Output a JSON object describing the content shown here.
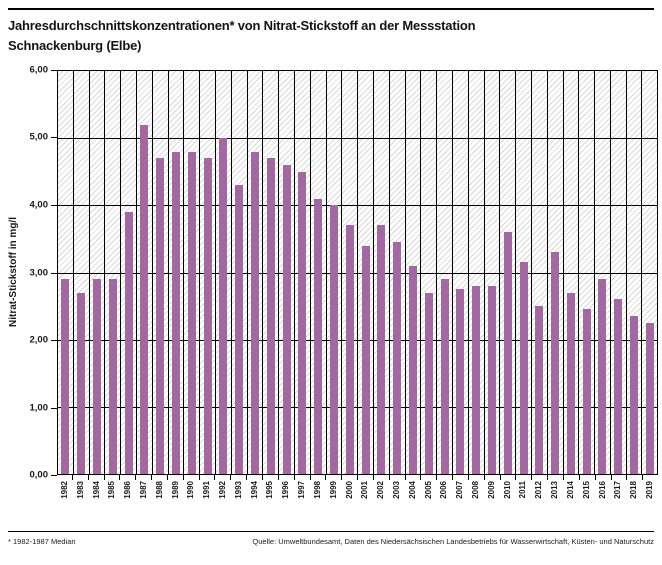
{
  "header": {
    "title_line1": "Jahresdurchschnittskonzentrationen* von Nitrat-Stickstoff an der Messstation",
    "title_line2": "Schnackenburg (Elbe)"
  },
  "footer": {
    "footnote": "* 1982-1987 Median",
    "source": "Quelle: Umweltbundesamt, Daten des Niedersächsischen Landesbetriebs für Wasserwirtschaft, Küsten- und Naturschutz"
  },
  "colors": {
    "bar": "#a268a0",
    "gridline": "#000000",
    "hatch": "#dadada",
    "text": "#1a1a1a"
  },
  "chart_data": {
    "type": "bar",
    "title": "Jahresdurchschnittskonzentrationen* von Nitrat-Stickstoff an der Messstation Schnackenburg (Elbe)",
    "xlabel": "",
    "ylabel": "Nitrat-Stickstoff in mg/l",
    "ylim": [
      0,
      6
    ],
    "ytick_step": 1,
    "ytick_labels_top_to_bottom": [
      "6,00",
      "5,00",
      "4,00",
      "3,00",
      "2,00",
      "1,00",
      "0,00"
    ],
    "grid": true,
    "legend": "none",
    "background_pattern": "diagonal-hatch",
    "categories": [
      "1982",
      "1983",
      "1984",
      "1985",
      "1986",
      "1987",
      "1988",
      "1989",
      "1990",
      "1991",
      "1992",
      "1993",
      "1994",
      "1995",
      "1996",
      "1997",
      "1998",
      "1999",
      "2000",
      "2001",
      "2002",
      "2003",
      "2004",
      "2005",
      "2006",
      "2007",
      "2008",
      "2009",
      "2010",
      "2011",
      "2012",
      "2013",
      "2014",
      "2015",
      "2016",
      "2017",
      "2018",
      "2019"
    ],
    "values": [
      2.9,
      2.7,
      2.9,
      2.9,
      3.9,
      5.2,
      4.7,
      4.8,
      4.8,
      4.7,
      5.0,
      4.3,
      4.8,
      4.7,
      4.6,
      4.5,
      4.1,
      4.0,
      3.7,
      3.4,
      3.7,
      3.45,
      3.1,
      2.7,
      2.9,
      2.75,
      2.8,
      2.8,
      3.6,
      3.15,
      2.5,
      3.3,
      2.7,
      2.45,
      2.9,
      2.6,
      2.35,
      2.25
    ],
    "unit": "mg/l"
  }
}
